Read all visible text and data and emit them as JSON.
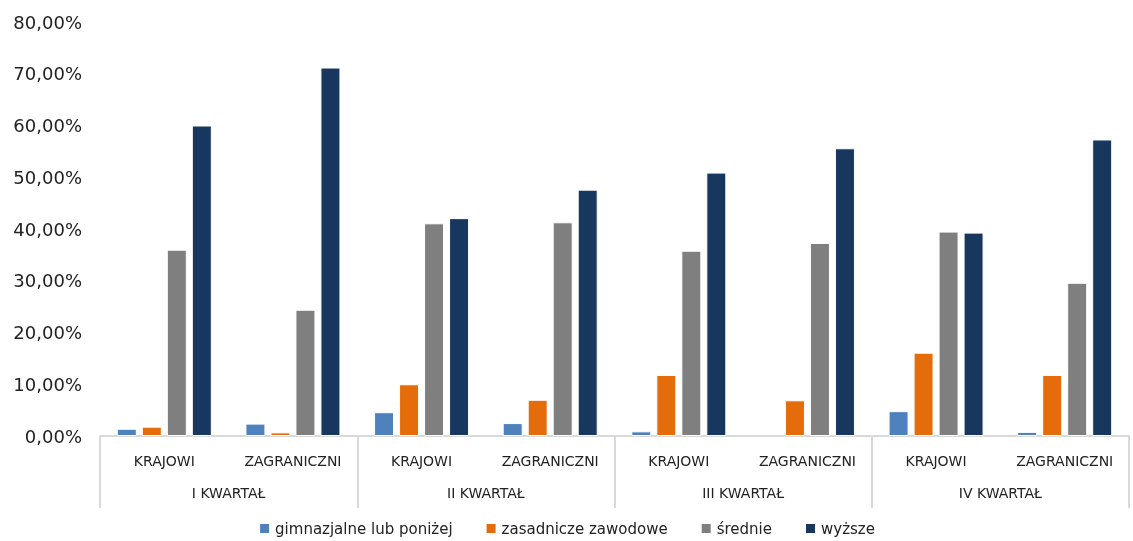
{
  "chart_data": {
    "type": "bar",
    "categories": [
      "KRAJOWI",
      "ZAGRANICZNI",
      "KRAJOWI",
      "ZAGRANICZNI",
      "KRAJOWI",
      "ZAGRANICZNI",
      "KRAJOWI",
      "ZAGRANICZNI"
    ],
    "annotations": [
      "I KWARTAŁ",
      "II KWARTAŁ",
      "III KWARTAŁ",
      "IV KWARTAŁ"
    ],
    "series": [
      {
        "name": "gimnazjalne lub poniżej",
        "color": "#4f81bd",
        "values": [
          1.4,
          2.4,
          4.6,
          2.5,
          0.9,
          null,
          4.8,
          0.8
        ]
      },
      {
        "name": "zasadnicze zawodowe",
        "color": "#e46c0a",
        "values": [
          1.8,
          0.7,
          10.0,
          7.0,
          11.8,
          6.9,
          16.1,
          11.8
        ]
      },
      {
        "name": "średnie",
        "color": "#7f7f7f",
        "values": [
          36.0,
          24.4,
          41.1,
          41.3,
          35.8,
          37.3,
          39.5,
          29.6
        ]
      },
      {
        "name": "wyższe",
        "color": "#17375e",
        "values": [
          60.0,
          71.2,
          42.1,
          47.6,
          50.9,
          55.6,
          39.3,
          57.3
        ]
      }
    ],
    "ylim": [
      0,
      80
    ],
    "yticks": [
      {
        "value": 0,
        "label": "0,00%"
      },
      {
        "value": 10,
        "label": "10,00%"
      },
      {
        "value": 20,
        "label": "20,00%"
      },
      {
        "value": 30,
        "label": "30,00%"
      },
      {
        "value": 40,
        "label": "40,00%"
      },
      {
        "value": 50,
        "label": "50,00%"
      },
      {
        "value": 60,
        "label": "60,00%"
      },
      {
        "value": 70,
        "label": "70,00%"
      },
      {
        "value": 80,
        "label": "80,00%"
      }
    ],
    "grid": false,
    "legend": "bottom"
  }
}
